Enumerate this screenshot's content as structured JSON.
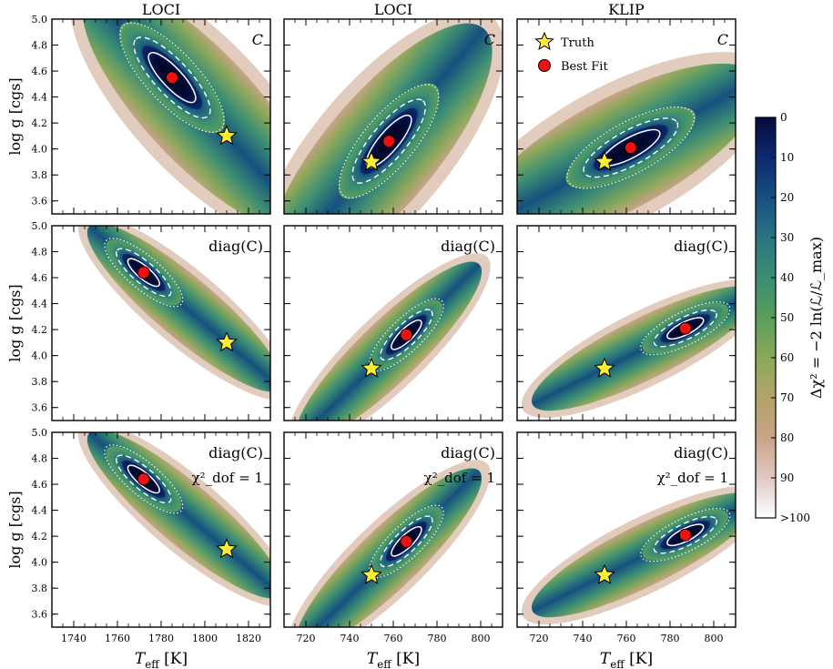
{
  "figure": {
    "column_titles": [
      "LOCI",
      "LOCI",
      "KLIP"
    ],
    "ylabel": "log g [cgs]",
    "xlabel": "T_eff [K]",
    "legend": {
      "truth": "Truth",
      "best_fit": "Best Fit"
    },
    "colorbar": {
      "label": "Δχ² = −2 ln(ℒ/ℒ_max)",
      "ticks": [
        "0",
        "10",
        "20",
        "30",
        "40",
        "50",
        "60",
        "70",
        "80",
        "90",
        ">100"
      ],
      "colors": [
        "#050a3c",
        "#0d2a6e",
        "#16507f",
        "#2a7383",
        "#3b8d74",
        "#5a9e5b",
        "#8aa85a",
        "#b3a36a",
        "#caa386",
        "#e0c8c4",
        "#ffffff"
      ]
    }
  },
  "chart_data": [
    {
      "type": "heatmap",
      "row": 0,
      "col": 0,
      "label": "C",
      "label2": "",
      "title": "LOCI",
      "xlabel": "T_eff [K]",
      "ylabel": "log g [cgs]",
      "xlim": [
        1730,
        1830
      ],
      "ylim": [
        3.5,
        5.0
      ],
      "xticks": [
        "1740",
        "1760",
        "1780",
        "1800",
        "1820"
      ],
      "yticks": [
        "3.6",
        "3.8",
        "4.0",
        "4.2",
        "4.4",
        "4.6",
        "4.8",
        "5.0"
      ],
      "truth": [
        1810,
        4.1
      ],
      "best_fit": [
        1785,
        4.55
      ]
    },
    {
      "type": "heatmap",
      "row": 0,
      "col": 1,
      "label": "C",
      "label2": "",
      "title": "LOCI",
      "xlabel": "T_eff [K]",
      "ylabel": "log g [cgs]",
      "xlim": [
        710,
        810
      ],
      "ylim": [
        3.5,
        5.0
      ],
      "xticks": [
        "720",
        "740",
        "760",
        "780",
        "800"
      ],
      "yticks": [
        "3.6",
        "3.8",
        "4.0",
        "4.2",
        "4.4",
        "4.6",
        "4.8",
        "5.0"
      ],
      "truth": [
        750,
        3.9
      ],
      "best_fit": [
        758,
        4.06
      ]
    },
    {
      "type": "heatmap",
      "row": 0,
      "col": 2,
      "label": "C",
      "label2": "",
      "title": "KLIP",
      "xlabel": "T_eff [K]",
      "ylabel": "log g [cgs]",
      "xlim": [
        710,
        810
      ],
      "ylim": [
        3.5,
        5.0
      ],
      "xticks": [
        "720",
        "740",
        "760",
        "780",
        "800"
      ],
      "yticks": [
        "3.6",
        "3.8",
        "4.0",
        "4.2",
        "4.4",
        "4.6",
        "4.8",
        "5.0"
      ],
      "truth": [
        750,
        3.9
      ],
      "best_fit": [
        762,
        4.01
      ]
    },
    {
      "type": "heatmap",
      "row": 1,
      "col": 0,
      "label": "diag(C)",
      "label2": "",
      "title": "",
      "xlabel": "T_eff [K]",
      "ylabel": "log g [cgs]",
      "xlim": [
        1730,
        1830
      ],
      "ylim": [
        3.5,
        5.0
      ],
      "xticks": [
        "1740",
        "1760",
        "1780",
        "1800",
        "1820"
      ],
      "yticks": [
        "3.6",
        "3.8",
        "4.0",
        "4.2",
        "4.4",
        "4.6",
        "4.8",
        "5.0"
      ],
      "truth": [
        1810,
        4.1
      ],
      "best_fit": [
        1772,
        4.64
      ]
    },
    {
      "type": "heatmap",
      "row": 1,
      "col": 1,
      "label": "diag(C)",
      "label2": "",
      "title": "",
      "xlabel": "T_eff [K]",
      "ylabel": "log g [cgs]",
      "xlim": [
        710,
        810
      ],
      "ylim": [
        3.5,
        5.0
      ],
      "xticks": [
        "720",
        "740",
        "760",
        "780",
        "800"
      ],
      "yticks": [
        "3.6",
        "3.8",
        "4.0",
        "4.2",
        "4.4",
        "4.6",
        "4.8",
        "5.0"
      ],
      "truth": [
        750,
        3.9
      ],
      "best_fit": [
        766,
        4.16
      ]
    },
    {
      "type": "heatmap",
      "row": 1,
      "col": 2,
      "label": "diag(C)",
      "label2": "",
      "title": "",
      "xlabel": "T_eff [K]",
      "ylabel": "log g [cgs]",
      "xlim": [
        710,
        810
      ],
      "ylim": [
        3.5,
        5.0
      ],
      "xticks": [
        "720",
        "740",
        "760",
        "780",
        "800"
      ],
      "yticks": [
        "3.6",
        "3.8",
        "4.0",
        "4.2",
        "4.4",
        "4.6",
        "4.8",
        "5.0"
      ],
      "truth": [
        750,
        3.9
      ],
      "best_fit": [
        787,
        4.21
      ]
    },
    {
      "type": "heatmap",
      "row": 2,
      "col": 0,
      "label": "diag(C)",
      "label2": "χ²_dof = 1",
      "title": "",
      "xlabel": "T_eff [K]",
      "ylabel": "log g [cgs]",
      "xlim": [
        1730,
        1830
      ],
      "ylim": [
        3.5,
        5.0
      ],
      "xticks": [
        "1740",
        "1760",
        "1780",
        "1800",
        "1820"
      ],
      "yticks": [
        "3.6",
        "3.8",
        "4.0",
        "4.2",
        "4.4",
        "4.6",
        "4.8",
        "5.0"
      ],
      "truth": [
        1810,
        4.1
      ],
      "best_fit": [
        1772,
        4.64
      ]
    },
    {
      "type": "heatmap",
      "row": 2,
      "col": 1,
      "label": "diag(C)",
      "label2": "χ²_dof = 1",
      "title": "",
      "xlabel": "T_eff [K]",
      "ylabel": "log g [cgs]",
      "xlim": [
        710,
        810
      ],
      "ylim": [
        3.5,
        5.0
      ],
      "xticks": [
        "720",
        "740",
        "760",
        "780",
        "800"
      ],
      "yticks": [
        "3.6",
        "3.8",
        "4.0",
        "4.2",
        "4.4",
        "4.6",
        "4.8",
        "5.0"
      ],
      "truth": [
        750,
        3.9
      ],
      "best_fit": [
        766,
        4.16
      ]
    },
    {
      "type": "heatmap",
      "row": 2,
      "col": 2,
      "label": "diag(C)",
      "label2": "χ²_dof = 1",
      "title": "",
      "xlabel": "T_eff [K]",
      "ylabel": "log g [cgs]",
      "xlim": [
        710,
        810
      ],
      "ylim": [
        3.5,
        5.0
      ],
      "xticks": [
        "720",
        "740",
        "760",
        "780",
        "800"
      ],
      "yticks": [
        "3.6",
        "3.8",
        "4.0",
        "4.2",
        "4.4",
        "4.6",
        "4.8",
        "5.0"
      ],
      "truth": [
        750,
        3.9
      ],
      "best_fit": [
        787,
        4.21
      ]
    }
  ]
}
